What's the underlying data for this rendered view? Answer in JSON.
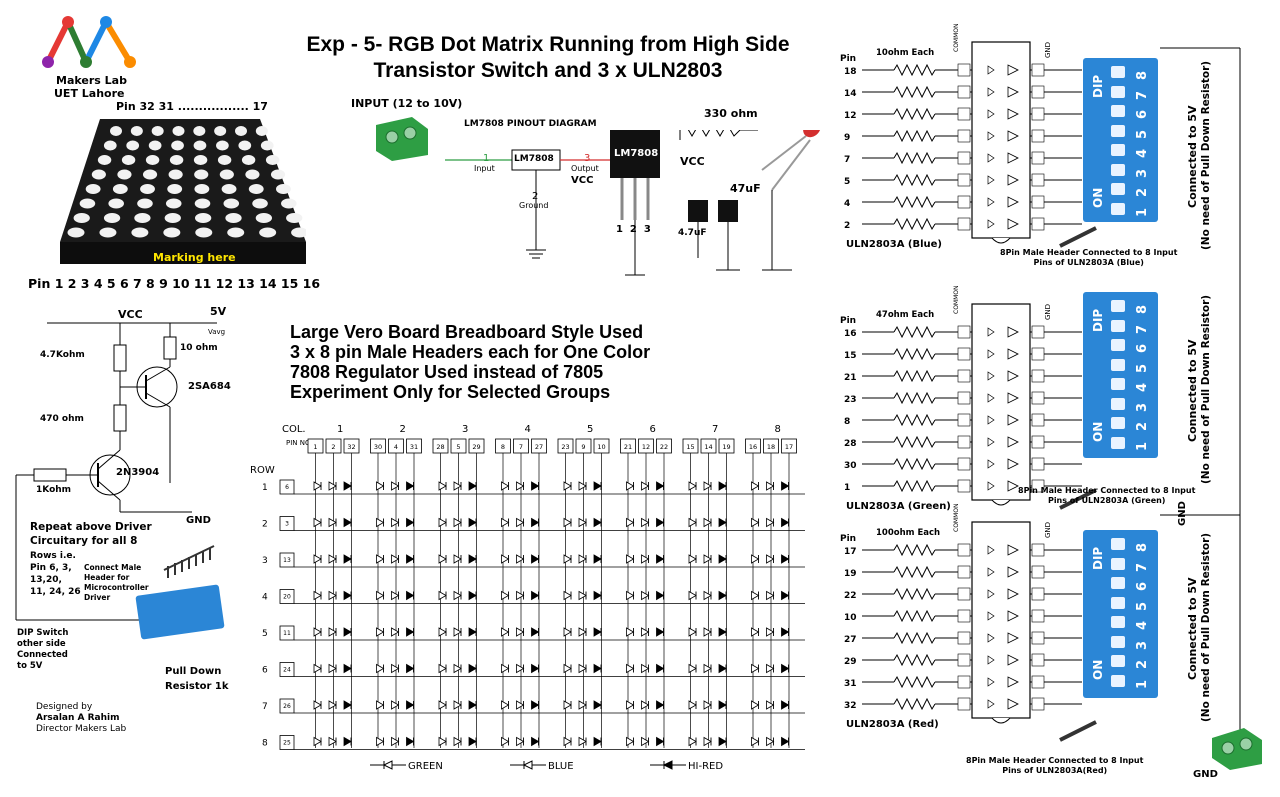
{
  "header": {
    "title_line1": "Exp - 5- RGB Dot Matrix Running from High Side",
    "title_line2": "Transistor Switch and 3 x ULN2803"
  },
  "logo": {
    "line1": "Makers Lab",
    "line2": "UET Lahore",
    "colors": [
      "#e53935",
      "#2e7d32",
      "#1e88e5",
      "#fb8c00",
      "#8e24aa"
    ]
  },
  "matrix_photo": {
    "pin_top": "Pin 32 31 ................. 17",
    "marking": "Marking here",
    "pin_bottom": "Pin 1 2 3 4 5 6 7 8 9 10 11 12 13 14 15 16"
  },
  "regulator": {
    "input_label": "INPUT (12 to 10V)",
    "pinout_title": "LM7808 PINOUT DIAGRAM",
    "ic_name": "LM7808",
    "pin1": "1",
    "pin1_label": "Input",
    "pin2": "2",
    "pin2_label": "Ground",
    "pin3": "3",
    "pin3_label": "Output",
    "vcc": "VCC",
    "vcc2": "VCC",
    "pkg_pins": "1  2  3",
    "cap1": "4.7uF",
    "cap2": "47uF",
    "resistor": "330 ohm"
  },
  "driver": {
    "vcc": "VCC",
    "v5": "5V",
    "vavg": "Vavg",
    "r1": "4.7Kohm",
    "r2": "10 ohm",
    "r3": "470 ohm",
    "r4": "1Kohm",
    "q1": "2SA684",
    "q2": "2N3904",
    "gnd": "GND",
    "repeat1": "Repeat above Driver",
    "repeat2": "Circuitary for all 8",
    "rows_ie": "Rows i.e.",
    "rows_list1": "Pin 6, 3,",
    "rows_list2": "13,20,",
    "rows_list3": "11, 24, 26",
    "header_note1": "Connect Male",
    "header_note2": "Header for",
    "header_note3": "Microcontroller",
    "header_note4": "Driver",
    "dip_note1": "DIP Switch",
    "dip_note2": "other side",
    "dip_note3": "Connected",
    "dip_note4": "to 5V",
    "pulldown1": "Pull Down",
    "pulldown2": "Resistor 1k"
  },
  "credits": {
    "line1": "Designed by",
    "line2": "Arsalan A Rahim",
    "line3": "Director Makers Lab"
  },
  "notes": {
    "line1": "Large Vero Board Breadboard Style Used",
    "line2": "3 x 8 pin Male Headers each for One Color",
    "line3": "7808 Regulator Used instead of 7805",
    "line4": "Experiment Only for Selected Groups"
  },
  "grid": {
    "col_label": "COL.",
    "pin_no": "PIN NO.",
    "row_label": "ROW",
    "cols": [
      "1",
      "2",
      "3",
      "4",
      "5",
      "6",
      "7",
      "8"
    ],
    "col_pins": [
      [
        "1",
        "2",
        "32"
      ],
      [
        "30",
        "4",
        "31"
      ],
      [
        "28",
        "5",
        "29"
      ],
      [
        "8",
        "7",
        "27"
      ],
      [
        "23",
        "9",
        "10"
      ],
      [
        "21",
        "12",
        "22"
      ],
      [
        "15",
        "14",
        "19"
      ],
      [
        "16",
        "18",
        "17"
      ]
    ],
    "rows": [
      "1",
      "2",
      "3",
      "4",
      "5",
      "6",
      "7",
      "8"
    ],
    "row_pins": [
      "6",
      "3",
      "13",
      "20",
      "11",
      "24",
      "26",
      "25"
    ],
    "legend": [
      "GREEN",
      "BLUE",
      "HI-RED"
    ]
  },
  "uln": [
    {
      "name": "ULN2803A (Blue)",
      "res": "10ohm Each",
      "pin_hdr": "Pin",
      "pins": [
        "18",
        "14",
        "12",
        "9",
        "7",
        "5",
        "4",
        "2"
      ],
      "header_note1": "8Pin Male Header Connected to 8 Input",
      "header_note2": "Pins of ULN2803A (Blue)"
    },
    {
      "name": "ULN2803A (Green)",
      "res": "47ohm Each",
      "pin_hdr": "Pin",
      "pins": [
        "16",
        "15",
        "21",
        "23",
        "8",
        "28",
        "30",
        "1"
      ],
      "header_note1": "8Pin Male Header Connected to 8 Input",
      "header_note2": "Pins of ULN2803A (Green)"
    },
    {
      "name": "ULN2803A (Red)",
      "res": "100ohm Each",
      "pin_hdr": "Pin",
      "pins": [
        "17",
        "19",
        "22",
        "10",
        "27",
        "29",
        "31",
        "32"
      ],
      "header_note1": "8Pin Male Header Connected to 8 Input",
      "header_note2": "Pins of ULN2803A(Red)"
    }
  ],
  "uln_common": {
    "common": "COMMON",
    "gnd": "GND",
    "dip": "DIP",
    "on": "ON",
    "nums": [
      "1",
      "2",
      "3",
      "4",
      "5",
      "6",
      "7",
      "8"
    ],
    "conn1": "Connected to 5V",
    "conn2": "(No need of Pull Down Resistor)"
  },
  "right_gnd": "GND",
  "bottom_gnd": "GND"
}
